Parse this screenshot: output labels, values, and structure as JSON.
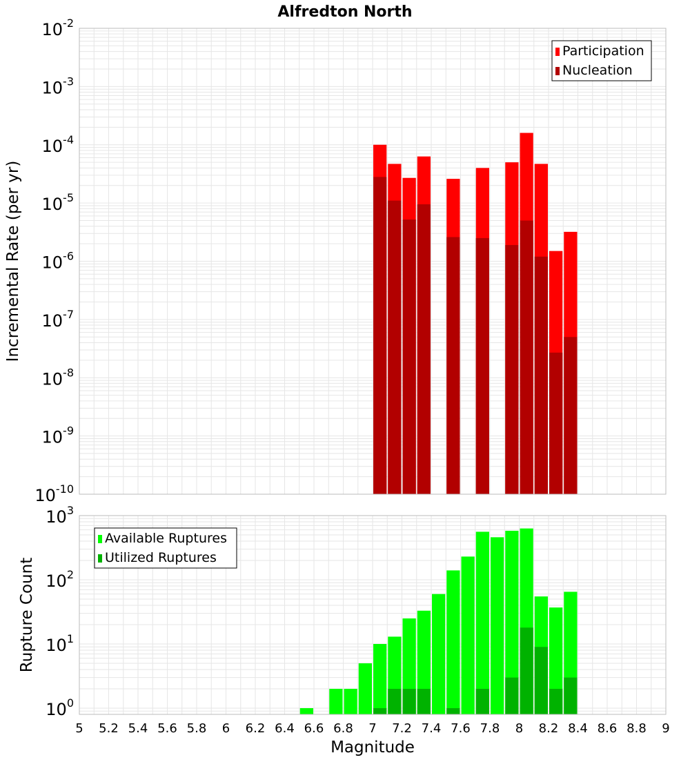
{
  "title": "Alfredton North",
  "colors": {
    "participation": "#ff0000",
    "nucleation": "#b20000",
    "available": "#00ff00",
    "utilized": "#00b200",
    "grid": "#e6e6e6",
    "frame": "#bbbbbb"
  },
  "chart_data": [
    {
      "type": "bar",
      "scale": "log",
      "ylabel": "Incremental Rate (per yr)",
      "ylim": [
        1e-10,
        0.01
      ],
      "yticks": [
        {
          "base": "10",
          "exp": "-10"
        },
        {
          "base": "10",
          "exp": "-9"
        },
        {
          "base": "10",
          "exp": "-8"
        },
        {
          "base": "10",
          "exp": "-7"
        },
        {
          "base": "10",
          "exp": "-6"
        },
        {
          "base": "10",
          "exp": "-5"
        },
        {
          "base": "10",
          "exp": "-4"
        },
        {
          "base": "10",
          "exp": "-3"
        },
        {
          "base": "10",
          "exp": "-2"
        }
      ],
      "legend_position": "top-right",
      "grid": true,
      "series": [
        {
          "name": "Participation",
          "x": [
            7.05,
            7.15,
            7.25,
            7.35,
            7.55,
            7.75,
            7.95,
            8.05,
            8.15,
            8.25,
            8.35
          ],
          "values": [
            0.0001,
            4.7e-05,
            2.7e-05,
            6.3e-05,
            2.6e-05,
            4e-05,
            5e-05,
            0.00016,
            4.7e-05,
            1.5e-06,
            3.2e-06
          ]
        },
        {
          "name": "Nucleation",
          "x": [
            7.05,
            7.15,
            7.25,
            7.35,
            7.55,
            7.75,
            7.95,
            8.05,
            8.15,
            8.25,
            8.35
          ],
          "values": [
            2.8e-05,
            1.1e-05,
            5.2e-06,
            9.5e-06,
            2.6e-06,
            2.5e-06,
            1.9e-06,
            5e-06,
            1.2e-06,
            2.7e-08,
            5e-08
          ]
        }
      ]
    },
    {
      "type": "bar",
      "scale": "log",
      "xlabel": "Magnitude",
      "ylabel": "Rupture Count",
      "xlim": [
        5,
        9
      ],
      "ylim": [
        0.8,
        1000
      ],
      "xticks": [
        "5",
        "5.2",
        "5.4",
        "5.6",
        "5.8",
        "6",
        "6.2",
        "6.4",
        "6.6",
        "6.8",
        "7",
        "7.2",
        "7.4",
        "7.6",
        "7.8",
        "8",
        "8.2",
        "8.4",
        "8.6",
        "8.8",
        "9"
      ],
      "yticks": [
        {
          "base": "10",
          "exp": "0"
        },
        {
          "base": "10",
          "exp": "1"
        },
        {
          "base": "10",
          "exp": "2"
        },
        {
          "base": "10",
          "exp": "3"
        }
      ],
      "legend_position": "top-left",
      "grid": true,
      "series": [
        {
          "name": "Available Ruptures",
          "x": [
            6.55,
            6.75,
            6.85,
            6.95,
            7.05,
            7.15,
            7.25,
            7.35,
            7.45,
            7.55,
            7.65,
            7.75,
            7.85,
            7.95,
            8.05,
            8.15,
            8.25,
            8.35
          ],
          "values": [
            1,
            2,
            2,
            5,
            10,
            13,
            25,
            33,
            60,
            140,
            230,
            560,
            460,
            580,
            630,
            55,
            37,
            65
          ]
        },
        {
          "name": "Utilized Ruptures",
          "x": [
            7.05,
            7.15,
            7.25,
            7.35,
            7.55,
            7.75,
            7.95,
            8.05,
            8.15,
            8.25,
            8.35
          ],
          "values": [
            1,
            2,
            2,
            2,
            1,
            2,
            3,
            18,
            9,
            2,
            3
          ]
        }
      ]
    }
  ]
}
